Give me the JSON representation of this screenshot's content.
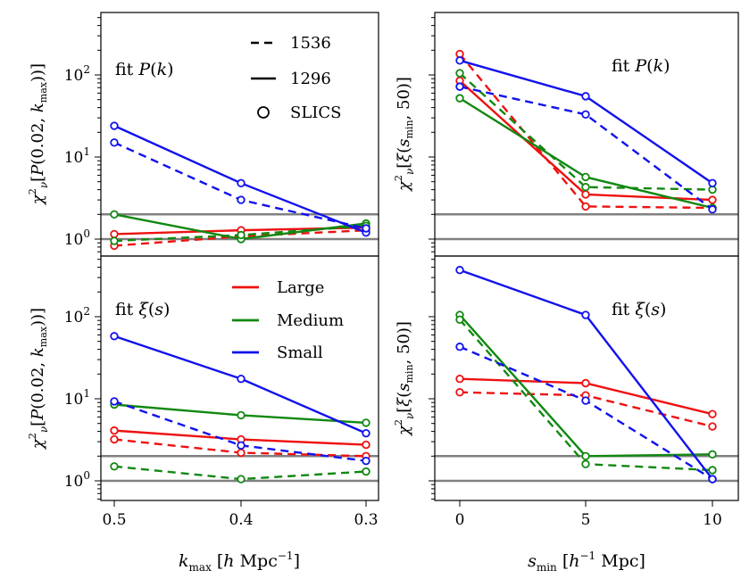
{
  "chart_data": {
    "type": "line",
    "colors": {
      "Large": "#ee1111",
      "Medium": "#118811",
      "Small": "#1111ee",
      "reference": "#808080"
    },
    "legend_linestyle": [
      {
        "label": "1536",
        "style": "dashed"
      },
      {
        "label": "1296",
        "style": "solid"
      },
      {
        "label": "SLICS",
        "style": "circle"
      }
    ],
    "legend_color": [
      {
        "label": "Large",
        "color": "#ee1111"
      },
      {
        "label": "Medium",
        "color": "#118811"
      },
      {
        "label": "Small",
        "color": "#1111ee"
      }
    ],
    "reference_lines": [
      1,
      2
    ],
    "left_x": {
      "label": "k_max [h Mpc^-1]",
      "ticks": [
        0.5,
        0.4,
        0.3
      ],
      "tick_labels": [
        "0.5",
        "0.4",
        "0.3"
      ]
    },
    "right_x": {
      "label": "s_min [h^-1 Mpc]",
      "ticks": [
        0,
        5,
        10
      ],
      "tick_labels": [
        "0",
        "5",
        "10"
      ]
    },
    "left_ylabel": "χ²_ν[P(0.02, k_max)]",
    "right_ylabel": "χ²_ν[ξ(s_min, 50)]",
    "y_tick_labels": [
      "10⁰",
      "10¹",
      "10²"
    ],
    "panels": [
      {
        "id": "top-left",
        "annotation": "fit P(k)",
        "x": [
          0.5,
          0.4,
          0.3
        ],
        "ylim": [
          0.55,
          500
        ],
        "yscale": "log",
        "series": [
          {
            "name": "Large",
            "resolution": "1296",
            "style": "solid",
            "values": [
              1.15,
              1.28,
              1.38
            ]
          },
          {
            "name": "Large",
            "resolution": "1536",
            "style": "dashed",
            "values": [
              0.83,
              1.08,
              1.28
            ]
          },
          {
            "name": "Medium",
            "resolution": "1296",
            "style": "solid",
            "values": [
              2.0,
              1.0,
              1.55
            ]
          },
          {
            "name": "Medium",
            "resolution": "1536",
            "style": "dashed",
            "values": [
              0.95,
              1.12,
              1.45
            ]
          },
          {
            "name": "Small",
            "resolution": "1296",
            "style": "solid",
            "values": [
              24,
              4.8,
              1.2
            ]
          },
          {
            "name": "Small",
            "resolution": "1536",
            "style": "dashed",
            "values": [
              15,
              3.0,
              1.35
            ]
          }
        ]
      },
      {
        "id": "top-right",
        "annotation": "fit P(k)",
        "x": [
          0,
          5,
          10
        ],
        "ylim": [
          0.55,
          500
        ],
        "yscale": "log",
        "series": [
          {
            "name": "Large",
            "resolution": "1296",
            "style": "solid",
            "values": [
              85,
              3.5,
              3.0
            ]
          },
          {
            "name": "Large",
            "resolution": "1536",
            "style": "dashed",
            "values": [
              180,
              2.5,
              2.4
            ]
          },
          {
            "name": "Medium",
            "resolution": "1296",
            "style": "solid",
            "values": [
              52,
              5.7,
              2.4
            ]
          },
          {
            "name": "Medium",
            "resolution": "1536",
            "style": "dashed",
            "values": [
              105,
              4.3,
              4.0
            ]
          },
          {
            "name": "Small",
            "resolution": "1296",
            "style": "solid",
            "values": [
              150,
              55,
              4.8
            ]
          },
          {
            "name": "Small",
            "resolution": "1536",
            "style": "dashed",
            "values": [
              72,
              33,
              2.3
            ]
          }
        ]
      },
      {
        "id": "bottom-left",
        "annotation": "fit ξ(s)",
        "x": [
          0.5,
          0.4,
          0.3
        ],
        "ylim": [
          0.55,
          500
        ],
        "yscale": "log",
        "series": [
          {
            "name": "Large",
            "resolution": "1296",
            "style": "solid",
            "values": [
              4.1,
              3.2,
              2.75
            ]
          },
          {
            "name": "Large",
            "resolution": "1536",
            "style": "dashed",
            "values": [
              3.2,
              2.2,
              2.0
            ]
          },
          {
            "name": "Medium",
            "resolution": "1296",
            "style": "solid",
            "values": [
              8.5,
              6.3,
              5.1
            ]
          },
          {
            "name": "Medium",
            "resolution": "1536",
            "style": "dashed",
            "values": [
              1.5,
              1.05,
              1.3
            ]
          },
          {
            "name": "Small",
            "resolution": "1296",
            "style": "solid",
            "values": [
              58,
              17.5,
              3.8
            ]
          },
          {
            "name": "Small",
            "resolution": "1536",
            "style": "dashed",
            "values": [
              9.3,
              2.7,
              1.75
            ]
          }
        ]
      },
      {
        "id": "bottom-right",
        "annotation": "fit ξ(s)",
        "x": [
          0,
          5,
          10
        ],
        "ylim": [
          0.55,
          500
        ],
        "yscale": "log",
        "series": [
          {
            "name": "Large",
            "resolution": "1296",
            "style": "solid",
            "values": [
              17.5,
              15.5,
              6.5
            ]
          },
          {
            "name": "Large",
            "resolution": "1536",
            "style": "dashed",
            "values": [
              12,
              11,
              4.6
            ]
          },
          {
            "name": "Medium",
            "resolution": "1296",
            "style": "solid",
            "values": [
              105,
              2.0,
              2.1
            ]
          },
          {
            "name": "Medium",
            "resolution": "1536",
            "style": "dashed",
            "values": [
              92,
              1.6,
              1.35
            ]
          },
          {
            "name": "Small",
            "resolution": "1296",
            "style": "solid",
            "values": [
              370,
              105,
              1.05
            ]
          },
          {
            "name": "Small",
            "resolution": "1536",
            "style": "dashed",
            "values": [
              43,
              9.5,
              1.05
            ]
          }
        ]
      }
    ]
  }
}
